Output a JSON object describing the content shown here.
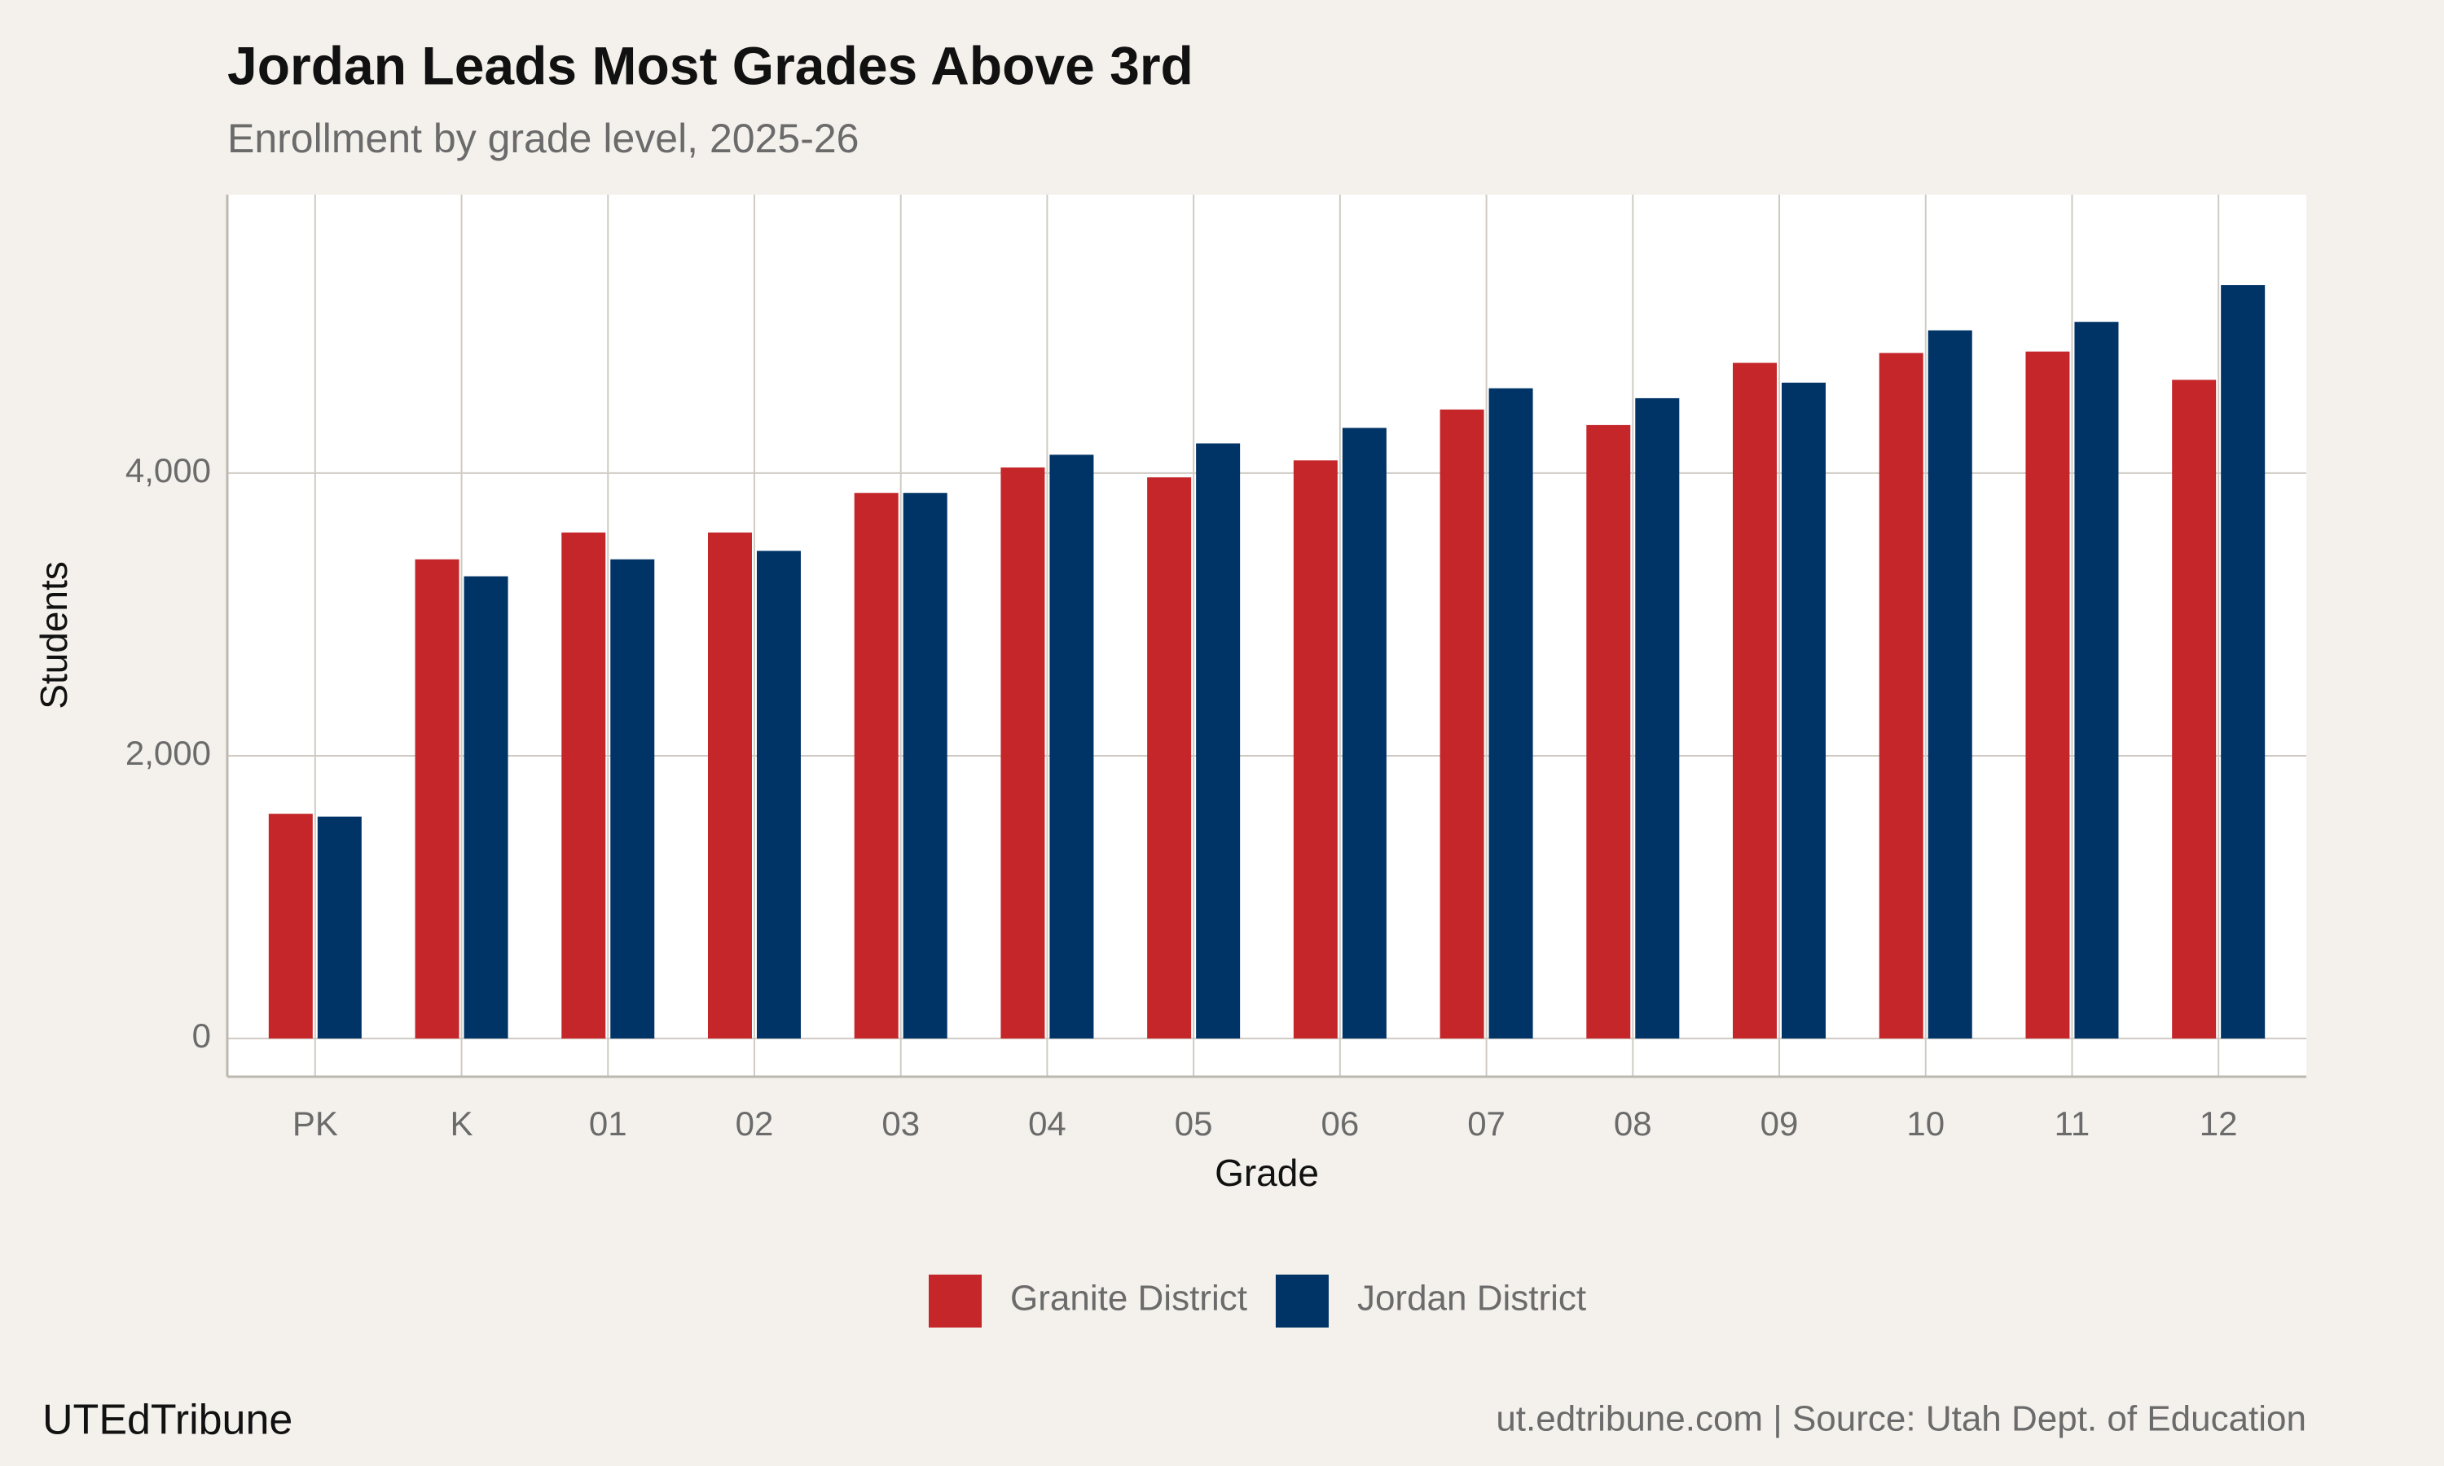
{
  "chart_data": {
    "type": "bar",
    "title": "Jordan Leads Most Grades Above 3rd",
    "subtitle": "Enrollment by grade level, 2025-26",
    "x_label": "Grade",
    "y_label": "Students",
    "categories": [
      "PK",
      "K",
      "01",
      "02",
      "03",
      "04",
      "05",
      "06",
      "07",
      "08",
      "09",
      "10",
      "11",
      "12"
    ],
    "series": [
      {
        "name": "Granite District",
        "color": "#c4262a",
        "values": [
          1590,
          3390,
          3580,
          3580,
          3860,
          4040,
          3970,
          4090,
          4450,
          4340,
          4780,
          4850,
          4860,
          4660
        ]
      },
      {
        "name": "Jordan District",
        "color": "#003366",
        "values": [
          1570,
          3270,
          3390,
          3450,
          3860,
          4130,
          4210,
          4320,
          4600,
          4530,
          4640,
          5010,
          5070,
          5330
        ]
      }
    ],
    "ylim": [
      -270,
      5970
    ],
    "yticks": [
      0,
      {
        "value": 2000,
        "label": "2,000"
      },
      {
        "value": 4000,
        "label": "4,000"
      }
    ],
    "grid": true,
    "legend": "bottom",
    "brand": "UTEdTribune",
    "caption": "ut.edtribune.com | Source: Utah Dept. of Education"
  }
}
